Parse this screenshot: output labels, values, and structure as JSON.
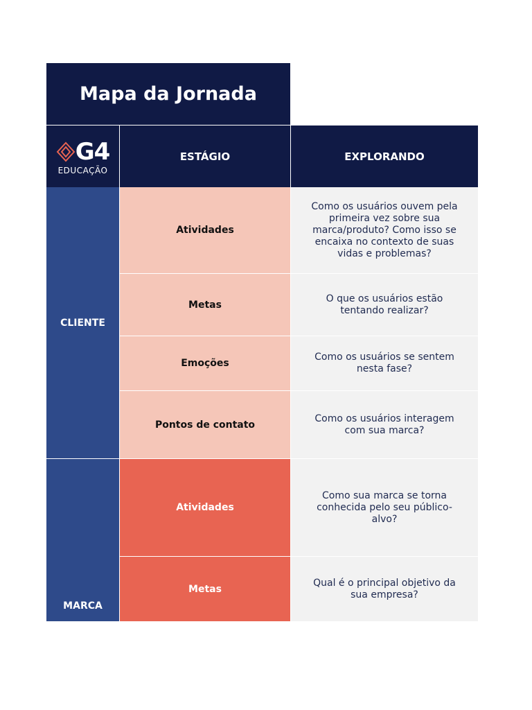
{
  "header": {
    "title": "Mapa da Jornada",
    "logo": {
      "mark": "G4",
      "subtitle": "EDUCAÇÃO"
    },
    "stage_heading": "ESTÁGIO",
    "explore_heading": "EXPLORANDO"
  },
  "groups": [
    {
      "label": "CLIENTE",
      "rows": [
        {
          "stage": "Atividades",
          "question": "Como os usuários ouvem pela primeira vez sobre sua marca/produto? Como isso se encaixa no contexto de suas vidas e problemas?"
        },
        {
          "stage": "Metas",
          "question": "O que os usuários estão tentando realizar?"
        },
        {
          "stage": "Emoções",
          "question": "Como os usuários se sentem nesta fase?"
        },
        {
          "stage": "Pontos de contato",
          "question": "Como os usuários interagem com sua marca?"
        }
      ]
    },
    {
      "label": "MARCA",
      "rows": [
        {
          "stage": "Atividades",
          "question": "Como sua marca se torna conhecida pelo seu público-alvo?"
        },
        {
          "stage": "Metas",
          "question": "Qual é o principal objetivo da sua empresa?"
        }
      ]
    }
  ]
}
